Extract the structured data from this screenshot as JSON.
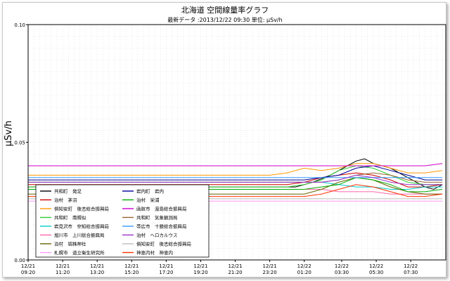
{
  "chart_data": {
    "type": "line",
    "title": "北海道 空間線量率グラフ",
    "subtitle": "最新データ :2013/12/22  09:30   単位: μSv/h",
    "ylabel": "μSv/h",
    "ylim": [
      0,
      0.1
    ],
    "yticks": [
      "0.00",
      "0.05",
      "0.10"
    ],
    "grid": true,
    "legend_position": "bottom-left",
    "x_tick_labels": [
      [
        "12/21",
        "09:20"
      ],
      [
        "12/21",
        "11:20"
      ],
      [
        "12/21",
        "13:20"
      ],
      [
        "12/21",
        "15:20"
      ],
      [
        "12/21",
        "17:20"
      ],
      [
        "12/21",
        "19:20"
      ],
      [
        "12/21",
        "21:20"
      ],
      [
        "12/21",
        "23:20"
      ],
      [
        "12/22",
        "01:20"
      ],
      [
        "12/22",
        "03:30"
      ],
      [
        "12/22",
        "05:30"
      ],
      [
        "12/22",
        "07:30"
      ]
    ],
    "x_hours": [
      0,
      2,
      4,
      6,
      8,
      10,
      12,
      14,
      16,
      18.17,
      20.17,
      22.17
    ],
    "x_range_hours": [
      0,
      24.2
    ],
    "series": [
      {
        "name": "共和町　発足",
        "color": "#000000",
        "points": [
          [
            0,
            0.031
          ],
          [
            2,
            0.031
          ],
          [
            4,
            0.031
          ],
          [
            6,
            0.031
          ],
          [
            8,
            0.031
          ],
          [
            10,
            0.031
          ],
          [
            12,
            0.031
          ],
          [
            14,
            0.031
          ],
          [
            15.5,
            0.031
          ],
          [
            16.5,
            0.033
          ],
          [
            17.5,
            0.036
          ],
          [
            18.5,
            0.04
          ],
          [
            19,
            0.042
          ],
          [
            19.5,
            0.043
          ],
          [
            20,
            0.041
          ],
          [
            20.5,
            0.04
          ],
          [
            21,
            0.039
          ],
          [
            21.5,
            0.037
          ],
          [
            22,
            0.035
          ],
          [
            22.5,
            0.033
          ],
          [
            23,
            0.031
          ],
          [
            23.5,
            0.03
          ],
          [
            24,
            0.032
          ]
        ]
      },
      {
        "name": "泊村　茅沼",
        "color": "#cc0000",
        "points": [
          [
            0,
            0.032
          ],
          [
            4,
            0.032
          ],
          [
            8,
            0.032
          ],
          [
            12,
            0.032
          ],
          [
            15,
            0.032
          ],
          [
            16,
            0.033
          ],
          [
            17,
            0.035
          ],
          [
            18,
            0.036
          ],
          [
            19,
            0.037
          ],
          [
            20,
            0.036
          ],
          [
            21,
            0.034
          ],
          [
            22,
            0.031
          ],
          [
            23,
            0.031
          ],
          [
            24,
            0.032
          ]
        ]
      },
      {
        "name": "倶知安町　後志総合振興局",
        "color": "#ff9900",
        "points": [
          [
            0,
            0.036
          ],
          [
            4,
            0.036
          ],
          [
            8,
            0.036
          ],
          [
            12,
            0.036
          ],
          [
            14,
            0.036
          ],
          [
            15,
            0.037
          ],
          [
            16,
            0.039
          ],
          [
            17,
            0.038
          ],
          [
            18,
            0.039
          ],
          [
            19,
            0.041
          ],
          [
            20,
            0.041
          ],
          [
            21,
            0.039
          ],
          [
            22,
            0.037
          ],
          [
            23,
            0.037
          ],
          [
            24,
            0.038
          ]
        ]
      },
      {
        "name": "共和町　南幌似",
        "color": "#33cc33",
        "points": [
          [
            0,
            0.031
          ],
          [
            4,
            0.031
          ],
          [
            8,
            0.031
          ],
          [
            12,
            0.031
          ],
          [
            15,
            0.031
          ],
          [
            16,
            0.032
          ],
          [
            17,
            0.034
          ],
          [
            18,
            0.038
          ],
          [
            19,
            0.04
          ],
          [
            20,
            0.039
          ],
          [
            21,
            0.036
          ],
          [
            22,
            0.033
          ],
          [
            23,
            0.032
          ],
          [
            24,
            0.032
          ]
        ]
      },
      {
        "name": "岩見沢市　空知総合振興局",
        "color": "#00cccc",
        "points": [
          [
            0,
            0.033
          ],
          [
            4,
            0.033
          ],
          [
            8,
            0.033
          ],
          [
            12,
            0.033
          ],
          [
            16,
            0.033
          ],
          [
            17,
            0.033
          ],
          [
            18,
            0.032
          ],
          [
            19,
            0.031
          ],
          [
            20,
            0.031
          ],
          [
            21,
            0.03
          ],
          [
            22,
            0.03
          ],
          [
            23,
            0.031
          ],
          [
            24,
            0.031
          ]
        ]
      },
      {
        "name": "旭川市　上川総合振興局",
        "color": "#ff66aa",
        "points": [
          [
            0,
            0.03
          ],
          [
            4,
            0.03
          ],
          [
            8,
            0.03
          ],
          [
            12,
            0.03
          ],
          [
            16,
            0.03
          ],
          [
            17,
            0.03
          ],
          [
            18,
            0.029
          ],
          [
            19,
            0.029
          ],
          [
            20,
            0.029
          ],
          [
            21,
            0.028
          ],
          [
            22,
            0.028
          ],
          [
            23,
            0.028
          ],
          [
            24,
            0.028
          ]
        ]
      },
      {
        "name": "泊村　堀株神社",
        "color": "#666600",
        "points": [
          [
            0,
            0.028
          ],
          [
            4,
            0.028
          ],
          [
            8,
            0.028
          ],
          [
            12,
            0.028
          ],
          [
            16,
            0.028
          ],
          [
            17,
            0.03
          ],
          [
            18,
            0.033
          ],
          [
            19,
            0.035
          ],
          [
            20,
            0.034
          ],
          [
            21,
            0.031
          ],
          [
            22,
            0.029
          ],
          [
            23,
            0.028
          ],
          [
            24,
            0.028
          ]
        ]
      },
      {
        "name": "札幌市　道立衛生研究所",
        "color": "#ff99ff",
        "points": [
          [
            0,
            0.025
          ],
          [
            4,
            0.025
          ],
          [
            8,
            0.025
          ],
          [
            12,
            0.025
          ],
          [
            16,
            0.025
          ],
          [
            18,
            0.025
          ],
          [
            20,
            0.025
          ],
          [
            22,
            0.025
          ],
          [
            24,
            0.025
          ]
        ]
      },
      {
        "name": "岩内町　岩内",
        "color": "#000099",
        "points": [
          [
            0,
            0.034
          ],
          [
            4,
            0.034
          ],
          [
            8,
            0.034
          ],
          [
            12,
            0.034
          ],
          [
            14,
            0.034
          ],
          [
            15,
            0.034
          ],
          [
            16,
            0.034
          ],
          [
            17,
            0.035
          ],
          [
            18,
            0.036
          ],
          [
            19,
            0.039
          ],
          [
            20,
            0.04
          ],
          [
            21,
            0.038
          ],
          [
            22,
            0.036
          ],
          [
            23,
            0.034
          ],
          [
            24,
            0.034
          ]
        ]
      },
      {
        "name": "泊村　栄浦",
        "color": "#00aa00",
        "points": [
          [
            0,
            0.03
          ],
          [
            4,
            0.03
          ],
          [
            8,
            0.03
          ],
          [
            12,
            0.03
          ],
          [
            16,
            0.03
          ],
          [
            17,
            0.031
          ],
          [
            18,
            0.032
          ],
          [
            19,
            0.035
          ],
          [
            20,
            0.034
          ],
          [
            21,
            0.032
          ],
          [
            22,
            0.029
          ],
          [
            23,
            0.029
          ],
          [
            24,
            0.03
          ]
        ]
      },
      {
        "name": "函館市　渡島総合振興局",
        "color": "#cc00cc",
        "points": [
          [
            0,
            0.04
          ],
          [
            4,
            0.04
          ],
          [
            8,
            0.04
          ],
          [
            12,
            0.04
          ],
          [
            16,
            0.04
          ],
          [
            17,
            0.04
          ],
          [
            18,
            0.04
          ],
          [
            19,
            0.04
          ],
          [
            20,
            0.04
          ],
          [
            21,
            0.04
          ],
          [
            22,
            0.04
          ],
          [
            23,
            0.04
          ],
          [
            24,
            0.041
          ]
        ]
      },
      {
        "name": "共和町　気象観測局",
        "color": "#996633",
        "points": [
          [
            0,
            0.033
          ],
          [
            4,
            0.033
          ],
          [
            8,
            0.033
          ],
          [
            12,
            0.033
          ],
          [
            16,
            0.033
          ],
          [
            17,
            0.033
          ],
          [
            18,
            0.034
          ],
          [
            19,
            0.036
          ],
          [
            20,
            0.037
          ],
          [
            21,
            0.036
          ],
          [
            22,
            0.034
          ],
          [
            23,
            0.033
          ],
          [
            24,
            0.033
          ]
        ]
      },
      {
        "name": "帯広市　十勝総合振興局",
        "color": "#3399ff",
        "points": [
          [
            0,
            0.035
          ],
          [
            4,
            0.035
          ],
          [
            8,
            0.035
          ],
          [
            12,
            0.035
          ],
          [
            16,
            0.035
          ],
          [
            17,
            0.035
          ],
          [
            18,
            0.035
          ],
          [
            19,
            0.035
          ],
          [
            20,
            0.035
          ],
          [
            21,
            0.035
          ],
          [
            22,
            0.035
          ],
          [
            23,
            0.035
          ],
          [
            24,
            0.035
          ]
        ]
      },
      {
        "name": "泊村　ヘロカルウス",
        "color": "#9933cc",
        "points": [
          [
            0,
            0.033
          ],
          [
            4,
            0.033
          ],
          [
            8,
            0.033
          ],
          [
            12,
            0.033
          ],
          [
            16,
            0.033
          ],
          [
            17,
            0.033
          ],
          [
            18,
            0.034
          ],
          [
            19,
            0.036
          ],
          [
            20,
            0.035
          ],
          [
            21,
            0.033
          ],
          [
            22,
            0.032
          ],
          [
            23,
            0.032
          ],
          [
            24,
            0.032
          ]
        ]
      },
      {
        "name": "俱知安町　後志総合振興局",
        "color": "#bbbbbb",
        "points": [
          [
            0,
            0.026
          ],
          [
            4,
            0.026
          ],
          [
            8,
            0.026
          ],
          [
            12,
            0.026
          ],
          [
            16,
            0.026
          ],
          [
            18,
            0.026
          ],
          [
            20,
            0.026
          ],
          [
            22,
            0.026
          ],
          [
            24,
            0.026
          ]
        ]
      },
      {
        "name": "神恵内村　神恵内",
        "color": "#ff3300",
        "points": [
          [
            0,
            0.027
          ],
          [
            4,
            0.027
          ],
          [
            8,
            0.027
          ],
          [
            12,
            0.027
          ],
          [
            16,
            0.027
          ],
          [
            17,
            0.028
          ],
          [
            18,
            0.03
          ],
          [
            19,
            0.032
          ],
          [
            20,
            0.031
          ],
          [
            21,
            0.029
          ],
          [
            22,
            0.027
          ],
          [
            23,
            0.027
          ],
          [
            24,
            0.028
          ]
        ]
      }
    ]
  }
}
